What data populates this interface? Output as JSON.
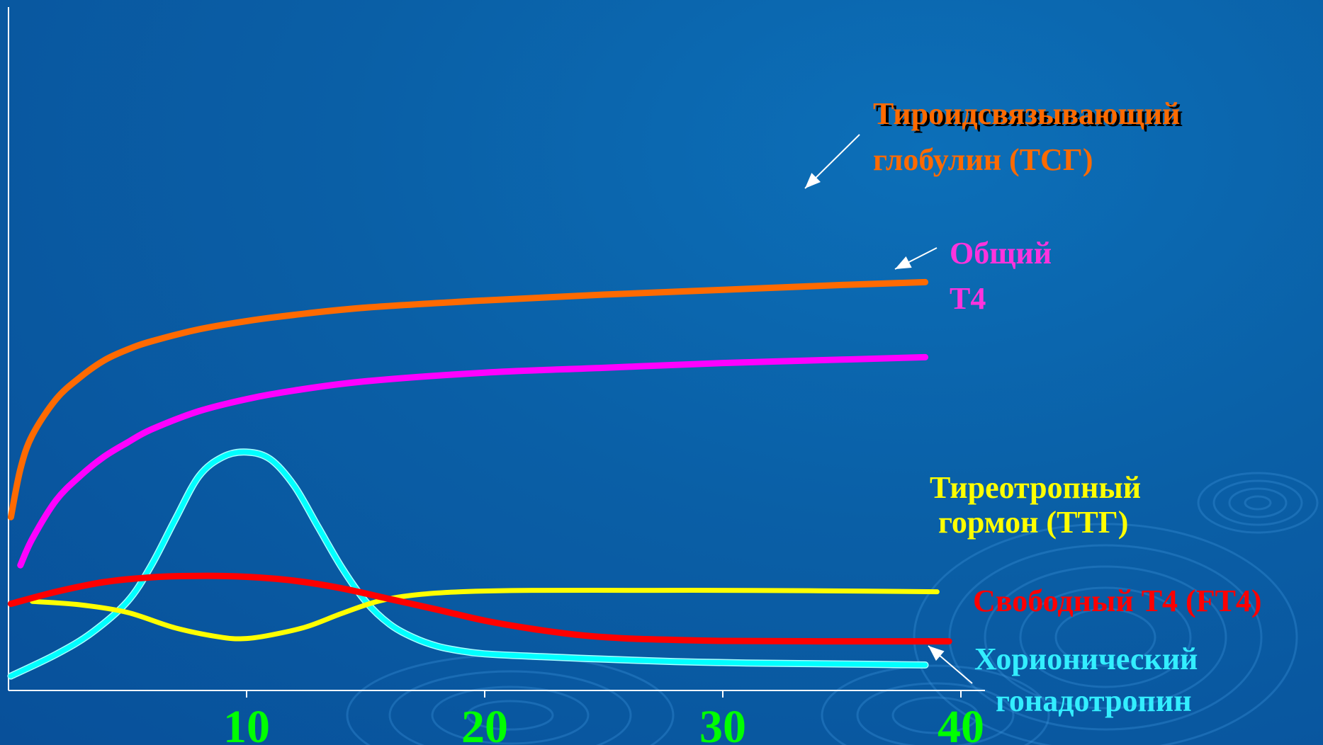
{
  "chart_data": {
    "type": "line",
    "x_ticks": [
      10,
      20,
      30,
      40
    ],
    "xlim": [
      0,
      43
    ],
    "ylim": [
      0,
      10
    ],
    "grid": false,
    "series": [
      {
        "name": "Тироидсвязывающий глобулин (ТСГ)",
        "label_lines": [
          "Тироидсвязывающий",
          "глобулин (ТСГ)"
        ],
        "color": "#ff6a00",
        "label_color": "#ff6a00",
        "x": [
          0.1,
          0.5,
          1,
          2,
          3,
          4,
          5,
          6,
          8,
          10,
          12,
          15,
          20,
          25,
          30,
          35,
          38.5
        ],
        "y": [
          3.6,
          4.6,
          5.3,
          6.05,
          6.5,
          6.85,
          7.08,
          7.25,
          7.5,
          7.67,
          7.8,
          7.95,
          8.1,
          8.22,
          8.32,
          8.42,
          8.48
        ]
      },
      {
        "name": "Общий Т4",
        "label_lines": [
          "Общий",
          "Т4"
        ],
        "color": "#ff00ff",
        "label_color": "#ff33dd",
        "x": [
          0.5,
          1,
          2,
          3,
          4,
          5,
          6,
          8,
          10,
          12,
          15,
          20,
          25,
          30,
          35,
          38.5
        ],
        "y": [
          2.6,
          3.15,
          3.95,
          4.45,
          4.85,
          5.15,
          5.42,
          5.8,
          6.05,
          6.23,
          6.42,
          6.6,
          6.7,
          6.8,
          6.87,
          6.92
        ]
      },
      {
        "name": "Тиреотропный гормон (ТТГ)",
        "label_lines": [
          "Тиреотропный",
          "гормон (ТТГ)"
        ],
        "color": "#ffff00",
        "label_color": "#ffff00",
        "x": [
          1,
          3,
          5,
          7,
          9,
          10,
          11,
          12.5,
          14,
          15.5,
          17,
          19,
          22,
          26,
          30,
          34,
          39
        ],
        "y": [
          1.85,
          1.78,
          1.62,
          1.3,
          1.1,
          1.08,
          1.15,
          1.32,
          1.6,
          1.85,
          1.98,
          2.05,
          2.08,
          2.08,
          2.08,
          2.07,
          2.05
        ]
      },
      {
        "name": "Свободный Т4 (FT4)",
        "label_lines": [
          "Свободный Т4 (FT4)"
        ],
        "color": "#ff0000",
        "label_color": "#ff0000",
        "x": [
          0.1,
          2,
          4,
          6,
          8,
          10,
          12,
          14,
          16,
          18,
          20,
          22,
          24,
          26,
          28,
          30,
          34,
          39.5
        ],
        "y": [
          1.8,
          2.05,
          2.25,
          2.35,
          2.38,
          2.36,
          2.28,
          2.12,
          1.9,
          1.68,
          1.45,
          1.28,
          1.15,
          1.08,
          1.05,
          1.03,
          1.02,
          1.02
        ]
      },
      {
        "name": "Хорионический гонадотропин",
        "label_lines": [
          "Хорионический",
          "гонадотропин"
        ],
        "color": "#00ffff",
        "label_color": "#33eeff",
        "x": [
          0.1,
          2,
          3.5,
          5,
          6,
          7,
          8,
          9,
          10,
          11,
          12,
          13,
          14,
          15,
          16,
          17,
          18,
          19,
          20,
          22,
          25,
          28,
          31,
          35,
          38.5
        ],
        "y": [
          0.3,
          0.75,
          1.2,
          1.85,
          2.6,
          3.55,
          4.45,
          4.85,
          4.95,
          4.8,
          4.25,
          3.4,
          2.55,
          1.85,
          1.38,
          1.1,
          0.92,
          0.82,
          0.76,
          0.71,
          0.65,
          0.6,
          0.57,
          0.55,
          0.53
        ]
      }
    ]
  }
}
